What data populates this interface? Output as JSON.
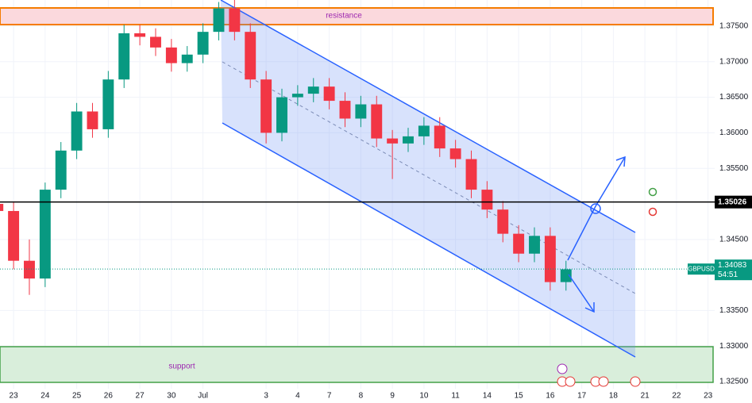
{
  "chart_data": {
    "type": "candlestick",
    "symbol": "GBPUSD",
    "countdown": "54:51",
    "last_price": 1.34083,
    "level": 1.35026,
    "zones": {
      "resistance": "resistance",
      "support": "support"
    },
    "up_color": "#089981",
    "down_color": "#f23645",
    "grid": true,
    "xlim": [
      -0.43,
      22.21
    ],
    "ylim": [
      1.324,
      1.37868
    ],
    "xticks": [
      {
        "value": 0,
        "label": "23"
      },
      {
        "value": 1,
        "label": "24"
      },
      {
        "value": 2,
        "label": "25"
      },
      {
        "value": 3,
        "label": "26"
      },
      {
        "value": 4,
        "label": "27"
      },
      {
        "value": 5,
        "label": "30"
      },
      {
        "value": 6,
        "label": "Jul"
      },
      {
        "value": 8,
        "label": "3"
      },
      {
        "value": 9,
        "label": "4"
      },
      {
        "value": 10,
        "label": "7"
      },
      {
        "value": 11,
        "label": "8"
      },
      {
        "value": 12,
        "label": "9"
      },
      {
        "value": 13,
        "label": "10"
      },
      {
        "value": 14,
        "label": "11"
      },
      {
        "value": 15,
        "label": "14"
      },
      {
        "value": 16,
        "label": "15"
      },
      {
        "value": 17,
        "label": "16"
      },
      {
        "value": 18,
        "label": "17"
      },
      {
        "value": 19,
        "label": "18"
      },
      {
        "value": 20,
        "label": "21"
      },
      {
        "value": 21,
        "label": "22"
      },
      {
        "value": 22,
        "label": "23"
      }
    ],
    "yticks": [
      {
        "value": 1.375,
        "label": "1.37500"
      },
      {
        "value": 1.37,
        "label": "1.37000"
      },
      {
        "value": 1.365,
        "label": "1.36500"
      },
      {
        "value": 1.36,
        "label": "1.36000"
      },
      {
        "value": 1.355,
        "label": "1.35500"
      },
      {
        "value": 1.345,
        "label": "1.34500"
      },
      {
        "value": 1.335,
        "label": "1.33500"
      },
      {
        "value": 1.33,
        "label": "1.33000"
      },
      {
        "value": 1.325,
        "label": "1.32500"
      }
    ],
    "x": [
      -0.5,
      0,
      0.5,
      1,
      1.5,
      2,
      2.5,
      3,
      3.5,
      4,
      4.5,
      5,
      5.5,
      6,
      6.5,
      7,
      7.5,
      8,
      8.5,
      9,
      9.5,
      10,
      10.5,
      11,
      11.5,
      12,
      12.5,
      13,
      13.5,
      14,
      14.5,
      15,
      15.5,
      16,
      16.5,
      17,
      17.5
    ],
    "open": [
      1.35,
      1.349,
      1.342,
      1.3395,
      1.352,
      1.3575,
      1.363,
      1.3605,
      1.3675,
      1.374,
      1.3735,
      1.372,
      1.3698,
      1.371,
      1.3742,
      1.3775,
      1.3742,
      1.3675,
      1.36,
      1.365,
      1.3655,
      1.3665,
      1.3645,
      1.362,
      1.364,
      1.3592,
      1.3585,
      1.3595,
      1.361,
      1.3578,
      1.3563,
      1.352,
      1.3492,
      1.3458,
      1.343,
      1.3455,
      1.339
    ],
    "high": [
      1.3512,
      1.3502,
      1.345,
      1.353,
      1.3587,
      1.3642,
      1.3642,
      1.3687,
      1.3752,
      1.3752,
      1.3747,
      1.3732,
      1.3722,
      1.3754,
      1.3784,
      1.3787,
      1.3754,
      1.3687,
      1.3662,
      1.3667,
      1.3677,
      1.3677,
      1.3657,
      1.3652,
      1.3652,
      1.3604,
      1.3607,
      1.3622,
      1.3622,
      1.359,
      1.3575,
      1.3532,
      1.3504,
      1.347,
      1.3467,
      1.3467,
      1.342
    ],
    "low": [
      1.3478,
      1.3408,
      1.3372,
      1.3383,
      1.3508,
      1.3563,
      1.3593,
      1.3593,
      1.3663,
      1.3723,
      1.3708,
      1.3686,
      1.3686,
      1.3698,
      1.373,
      1.373,
      1.3663,
      1.3585,
      1.3588,
      1.3638,
      1.3643,
      1.3633,
      1.3608,
      1.3608,
      1.358,
      1.3535,
      1.3573,
      1.3583,
      1.3566,
      1.3551,
      1.3508,
      1.348,
      1.3446,
      1.3418,
      1.3418,
      1.3378,
      1.3378
    ],
    "close": [
      1.349,
      1.342,
      1.3395,
      1.352,
      1.3575,
      1.363,
      1.3605,
      1.3675,
      1.374,
      1.3735,
      1.372,
      1.3698,
      1.371,
      1.3742,
      1.3775,
      1.3742,
      1.3675,
      1.36,
      1.365,
      1.3655,
      1.3665,
      1.3645,
      1.362,
      1.364,
      1.3592,
      1.3585,
      1.3595,
      1.361,
      1.3578,
      1.3563,
      1.352,
      1.3492,
      1.3458,
      1.343,
      1.3455,
      1.339,
      1.3408
    ]
  }
}
